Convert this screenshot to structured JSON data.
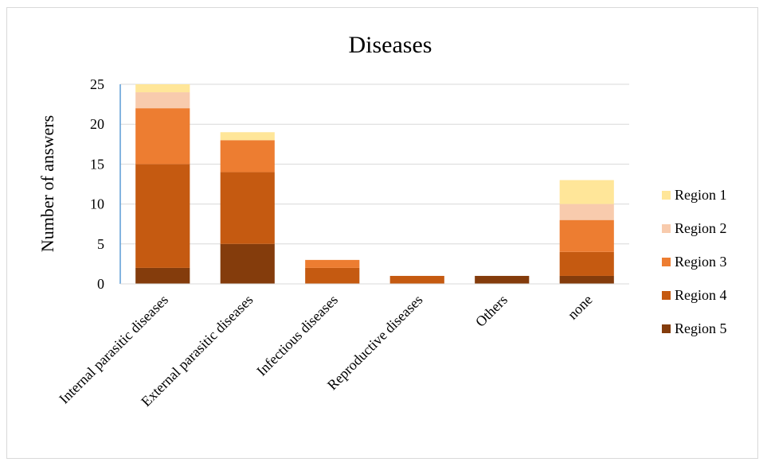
{
  "chart_data": {
    "type": "bar",
    "stacked": true,
    "title": "Diseases",
    "ylabel": "Number of answers",
    "xlabel": "",
    "ylim": [
      0,
      25
    ],
    "yticks": [
      0,
      5,
      10,
      15,
      20,
      25
    ],
    "grid": true,
    "legend_position": "right",
    "categories": [
      "Internal parasitic diseases",
      "External parasitic diseases",
      "Infectious diseases",
      "Reproductive diseases",
      "Others",
      "none"
    ],
    "series": [
      {
        "name": "Region 5",
        "color": "#843c0c",
        "values": [
          2,
          5,
          0,
          0,
          1,
          1
        ]
      },
      {
        "name": "Region 4",
        "color": "#c55a11",
        "values": [
          13,
          9,
          2,
          1,
          0,
          3
        ]
      },
      {
        "name": "Region 3",
        "color": "#ed7d31",
        "values": [
          7,
          4,
          1,
          0,
          0,
          4
        ]
      },
      {
        "name": "Region 2",
        "color": "#f8cbad",
        "values": [
          2,
          0,
          0,
          0,
          0,
          2
        ]
      },
      {
        "name": "Region 1",
        "color": "#ffe699",
        "values": [
          1,
          1,
          0,
          0,
          0,
          3
        ]
      }
    ],
    "legend_order": [
      "Region 1",
      "Region 2",
      "Region 3",
      "Region 4",
      "Region 5"
    ]
  }
}
